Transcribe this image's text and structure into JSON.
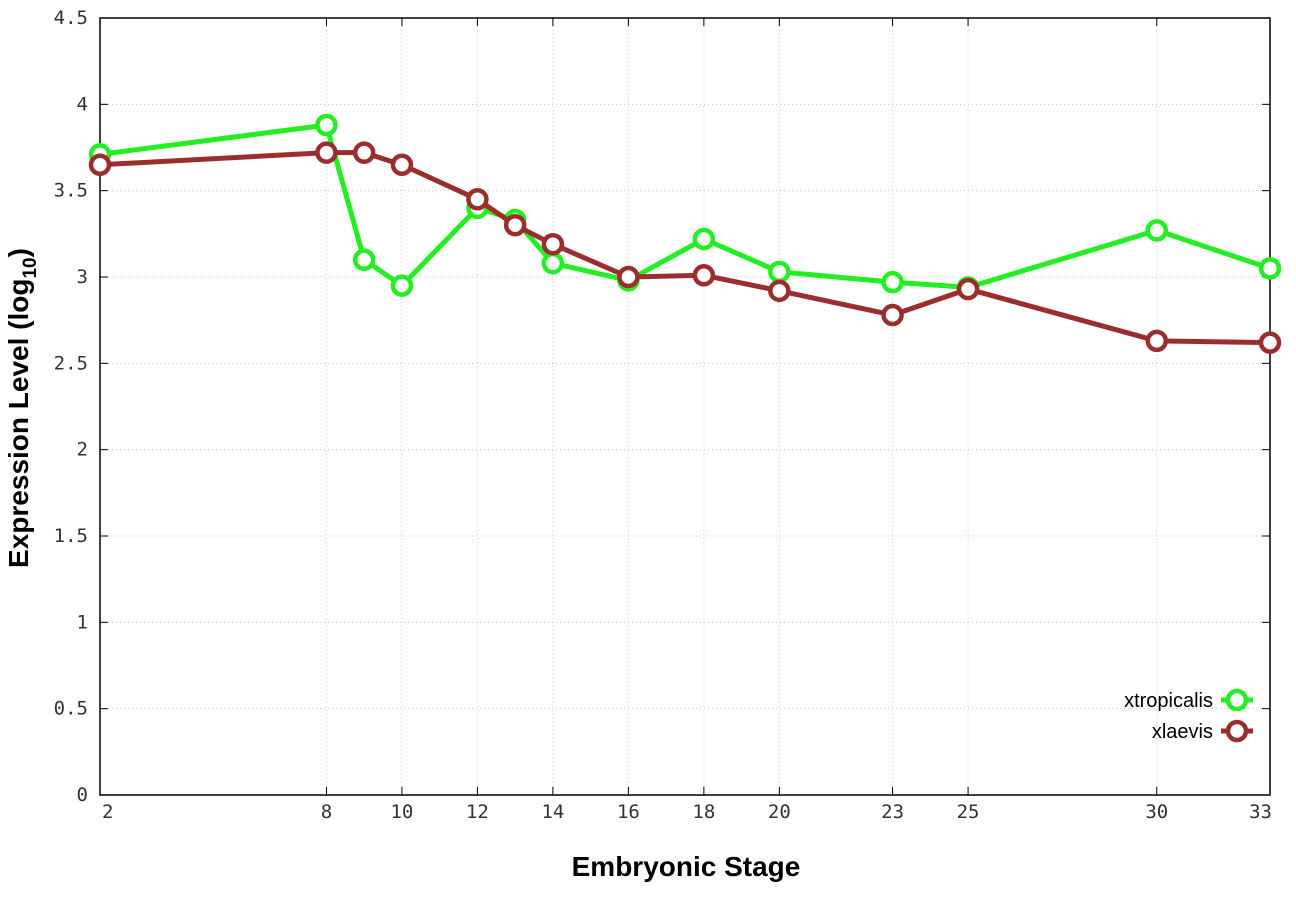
{
  "chart_data": {
    "type": "line",
    "xlabel": "Embryonic Stage",
    "ylabel_main": "Expression Level (log",
    "ylabel_sub": "10",
    "ylabel_close": ")",
    "x_ticks": [
      2,
      8,
      10,
      12,
      14,
      16,
      18,
      20,
      23,
      25,
      30,
      33
    ],
    "y_ticks": [
      "0",
      "0.5",
      "1",
      "1.5",
      "2",
      "2.5",
      "3",
      "3.5",
      "4",
      "4.5"
    ],
    "xlim": [
      2,
      33
    ],
    "ylim": [
      0,
      4.5
    ],
    "grid": true,
    "legend_position": "bottom-right",
    "x": [
      2,
      8,
      9,
      10,
      12,
      13,
      14,
      16,
      18,
      20,
      23,
      25,
      30,
      33
    ],
    "series": [
      {
        "name": "xtropicalis",
        "color": "#22ee22",
        "values": [
          3.71,
          3.88,
          3.1,
          2.95,
          3.4,
          3.33,
          3.08,
          2.98,
          3.22,
          3.03,
          2.97,
          2.94,
          3.27,
          3.05
        ]
      },
      {
        "name": "xlaevis",
        "color": "#9b2d2d",
        "values": [
          3.65,
          3.72,
          3.72,
          3.65,
          3.45,
          3.3,
          3.19,
          3.0,
          3.01,
          2.92,
          2.78,
          2.93,
          2.63,
          2.62
        ]
      }
    ]
  }
}
